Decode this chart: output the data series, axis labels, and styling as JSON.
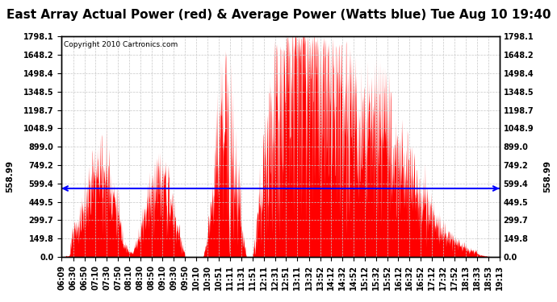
{
  "title": "East Array Actual Power (red) & Average Power (Watts blue) Tue Aug 10 19:40",
  "copyright": "Copyright 2010 Cartronics.com",
  "ymin": 0.0,
  "ymax": 1798.1,
  "yticks": [
    0.0,
    149.8,
    299.7,
    449.5,
    599.4,
    749.2,
    899.0,
    1048.9,
    1198.7,
    1348.5,
    1498.4,
    1648.2,
    1798.1
  ],
  "avg_power": 558.99,
  "avg_label": "558.99",
  "line_color": "#0000ff",
  "fill_color": "#ff0000",
  "bg_color": "#ffffff",
  "grid_color": "#c8c8c8",
  "title_fontsize": 11,
  "copyright_fontsize": 6.5,
  "tick_fontsize": 7,
  "time_labels": [
    "06:09",
    "06:30",
    "06:50",
    "07:10",
    "07:30",
    "07:50",
    "08:10",
    "08:30",
    "08:50",
    "09:10",
    "09:30",
    "09:50",
    "10:10",
    "10:30",
    "10:51",
    "11:11",
    "11:31",
    "11:51",
    "12:11",
    "12:31",
    "12:51",
    "13:11",
    "13:32",
    "13:52",
    "14:12",
    "14:32",
    "14:52",
    "15:12",
    "15:32",
    "15:52",
    "16:12",
    "16:32",
    "16:52",
    "17:12",
    "17:32",
    "17:52",
    "18:13",
    "18:33",
    "18:53",
    "19:13"
  ]
}
